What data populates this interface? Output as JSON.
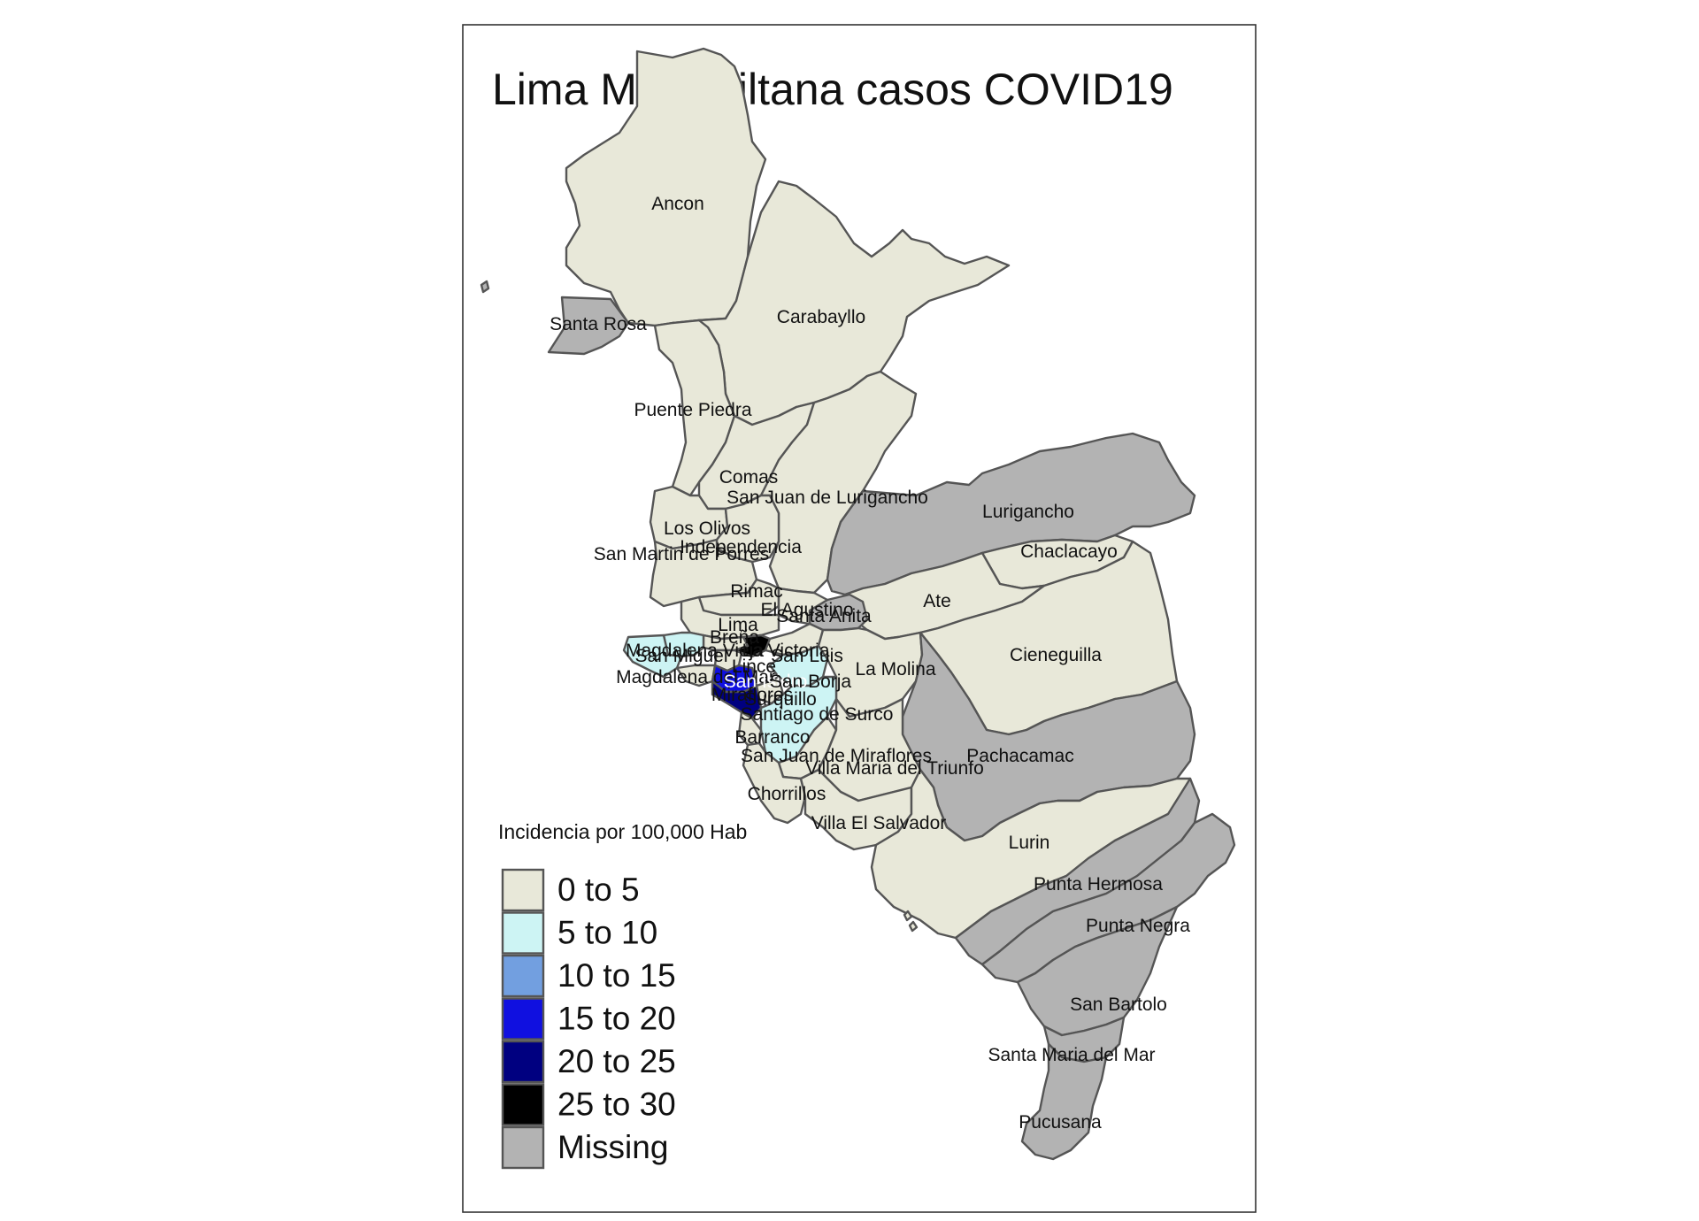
{
  "title": "Lima Metropiltana casos COVID19",
  "legend": {
    "title": "Incidencia por 100,000 Hab",
    "classes": [
      {
        "label": "0 to 5",
        "color": "#e8e8d9"
      },
      {
        "label": "5 to 10",
        "color": "#cdf4f4"
      },
      {
        "label": "10 to 15",
        "color": "#729fe0"
      },
      {
        "label": "15 to 20",
        "color": "#1010e0"
      },
      {
        "label": "20 to 25",
        "color": "#000080"
      },
      {
        "label": "25 to 30",
        "color": "#000000"
      },
      {
        "label": "Missing",
        "color": "#b3b3b3"
      }
    ]
  },
  "districts": [
    {
      "name": "Ancon",
      "class": "0 to 5"
    },
    {
      "name": "Santa Rosa",
      "class": "Missing"
    },
    {
      "name": "Carabayllo",
      "class": "0 to 5"
    },
    {
      "name": "Puente Piedra",
      "class": "0 to 5"
    },
    {
      "name": "Comas",
      "class": "0 to 5"
    },
    {
      "name": "San Juan de Lurigancho",
      "class": "0 to 5"
    },
    {
      "name": "Lurigancho",
      "class": "Missing"
    },
    {
      "name": "Los Olivos",
      "class": "0 to 5"
    },
    {
      "name": "Independencia",
      "class": "0 to 5"
    },
    {
      "name": "San Martin de Porres",
      "class": "0 to 5"
    },
    {
      "name": "Chaclacayo",
      "class": "0 to 5"
    },
    {
      "name": "Rimac",
      "class": "0 to 5"
    },
    {
      "name": "El Agustino",
      "class": "0 to 5"
    },
    {
      "name": "Santa Anita",
      "class": "Missing"
    },
    {
      "name": "Ate",
      "class": "0 to 5"
    },
    {
      "name": "Lima",
      "class": "0 to 5"
    },
    {
      "name": "Breña",
      "class": "0 to 5"
    },
    {
      "name": "Magdalena Vieja",
      "class": "5 to 10"
    },
    {
      "name": "San Miguel",
      "class": "5 to 10"
    },
    {
      "name": "La Victoria",
      "class": "25 to 30"
    },
    {
      "name": "San Luis",
      "class": "0 to 5"
    },
    {
      "name": "Lince",
      "class": "0 to 5"
    },
    {
      "name": "La Molina",
      "class": "0 to 5"
    },
    {
      "name": "Cieneguilla",
      "class": "0 to 5"
    },
    {
      "name": "Magdalena del Mar",
      "class": "0 to 5"
    },
    {
      "name": "San Isidro",
      "class": "15 to 20"
    },
    {
      "name": "San Borja",
      "class": "5 to 10"
    },
    {
      "name": "Surquillo",
      "class": "0 to 5"
    },
    {
      "name": "Miraflores",
      "class": "20 to 25"
    },
    {
      "name": "Santiago de Surco",
      "class": "5 to 10"
    },
    {
      "name": "Barranco",
      "class": "0 to 5"
    },
    {
      "name": "San Juan de Miraflores",
      "class": "0 to 5"
    },
    {
      "name": "Pachacamac",
      "class": "Missing"
    },
    {
      "name": "Villa Maria del Triunfo",
      "class": "0 to 5"
    },
    {
      "name": "Chorrillos",
      "class": "0 to 5"
    },
    {
      "name": "Villa El Salvador",
      "class": "0 to 5"
    },
    {
      "name": "Lurin",
      "class": "0 to 5"
    },
    {
      "name": "Punta Hermosa",
      "class": "Missing"
    },
    {
      "name": "Punta Negra",
      "class": "Missing"
    },
    {
      "name": "San Bartolo",
      "class": "Missing"
    },
    {
      "name": "Santa Maria del Mar",
      "class": "Missing"
    },
    {
      "name": "Pucusana",
      "class": "Missing"
    }
  ],
  "district_labels": {
    "Ancon": "Ancon",
    "Santa Rosa": "Santa Rosa",
    "Carabayllo": "Carabayllo",
    "Puente Piedra": "Puente Piedra",
    "Comas": "Comas",
    "San Juan de Lurigancho": "San Juan de Lurigancho",
    "Lurigancho": "Lurigancho",
    "Los Olivos": "Los Olivos",
    "Independencia": "Independencia",
    "San Martin de Porres": "San Martin de Porres",
    "Chaclacayo": "Chaclacayo",
    "Rimac": "Rimac",
    "El Agustino": "El Agustino",
    "Santa Anita": "Santa Anita",
    "Ate": "Ate",
    "Lima": "Lima",
    "Breña": "Breña",
    "Magdalena Vieja": "Magdalena Vieja",
    "San Miguel": "San Miguel",
    "La Victoria": "La Victoria",
    "San Luis": "San Luis",
    "Lince": "Lince",
    "La Molina": "La Molina",
    "Cieneguilla": "Cieneguilla",
    "Magdalena del Mar": "Magdalena del Mar",
    "San Isidro": "San Isidro",
    "San Borja": "San Borja",
    "Surquillo": "Surquillo",
    "Miraflores": "Miraflores",
    "Santiago de Surco": "Santiago de Surco",
    "Barranco": "Barranco",
    "San Juan de Miraflores": "San Juan de Miraflores",
    "Pachacamac": "Pachacamac",
    "Villa Maria del Triunfo": "Villa Maria del Triunfo",
    "Chorrillos": "Chorrillos",
    "Villa El Salvador": "Villa El Salvador",
    "Lurin": "Lurin",
    "Punta Hermosa": "Punta Hermosa",
    "Punta Negra": "Punta Negra",
    "San Bartolo": "San Bartolo",
    "Santa Maria del Mar": "Santa Maria del Mar",
    "Pucusana": "Pucusana"
  }
}
